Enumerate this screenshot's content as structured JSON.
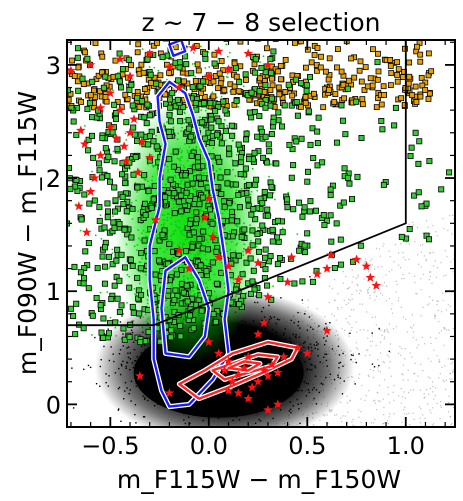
{
  "chart_data": {
    "type": "scatter",
    "title": "z ~ 7 − 8 selection",
    "xlabel": "m_F115W − m_F150W",
    "ylabel": "m_F090W − m_F115W",
    "xlim": [
      -0.72,
      1.25
    ],
    "ylim": [
      -0.2,
      3.22
    ],
    "x_ticks": [
      -0.5,
      0.0,
      0.5,
      1.0
    ],
    "x_tick_labels": [
      "−0.5",
      "0.0",
      "0.5",
      "1.0"
    ],
    "y_ticks": [
      0,
      1,
      2,
      3
    ],
    "y_tick_labels": [
      "0",
      "1",
      "2",
      "3"
    ],
    "selection_boundary": [
      [
        -0.72,
        0.7
      ],
      [
        -0.28,
        0.7
      ],
      [
        1.0,
        1.6
      ],
      [
        1.0,
        3.22
      ]
    ],
    "series": [
      {
        "color": "#000000",
        "marker": "dot",
        "centroid": [
          0.08,
          0.38
        ],
        "spread": [
          0.26,
          0.22
        ]
      },
      {
        "color": "#00dd00",
        "marker": "dot",
        "centroid": [
          -0.1,
          1.35
        ],
        "spread": [
          0.18,
          0.9
        ]
      },
      {
        "color": "#33cc33",
        "marker": "square"
      },
      {
        "color": "#e8a100",
        "marker": "square"
      },
      {
        "color": "#ff1111",
        "marker": "star",
        "points": [
          [
            -0.65,
            2.42
          ],
          [
            -0.63,
            2.3
          ],
          [
            -0.58,
            2.0
          ],
          [
            -0.6,
            1.88
          ],
          [
            -0.55,
            2.2
          ],
          [
            -0.5,
            2.45
          ],
          [
            -0.47,
            2.35
          ],
          [
            -0.45,
            2.6
          ],
          [
            -0.43,
            2.28
          ],
          [
            -0.42,
            2.15
          ],
          [
            -0.4,
            2.4
          ],
          [
            -0.38,
            2.52
          ],
          [
            -0.36,
            2.05
          ],
          [
            -0.34,
            2.32
          ],
          [
            -0.66,
            1.75
          ],
          [
            -0.62,
            1.52
          ],
          [
            -0.3,
            2.18
          ],
          [
            -0.27,
            1.63
          ],
          [
            -0.5,
            2.75
          ],
          [
            -0.7,
            2.95
          ],
          [
            -0.6,
            3.0
          ],
          [
            -0.45,
            3.05
          ],
          [
            -0.4,
            2.9
          ],
          [
            -0.55,
            2.62
          ],
          [
            -0.3,
            3.1
          ],
          [
            -0.2,
            2.98
          ],
          [
            -0.15,
            2.8
          ],
          [
            -0.08,
            3.15
          ],
          [
            0.0,
            2.9
          ],
          [
            0.1,
            2.96
          ],
          [
            0.2,
            3.1
          ],
          [
            0.3,
            3.0
          ],
          [
            0.05,
            3.12
          ],
          [
            -0.15,
            1.36
          ],
          [
            -0.1,
            1.2
          ],
          [
            0.0,
            1.82
          ],
          [
            -0.02,
            1.65
          ],
          [
            0.02,
            1.48
          ],
          [
            0.05,
            1.3
          ],
          [
            0.1,
            1.22
          ],
          [
            0.15,
            1.1
          ],
          [
            0.2,
            1.36
          ],
          [
            0.25,
            1.25
          ],
          [
            0.3,
            0.95
          ],
          [
            0.4,
            1.08
          ],
          [
            0.42,
            1.3
          ],
          [
            0.55,
            1.15
          ],
          [
            0.6,
            1.2
          ],
          [
            0.62,
            1.32
          ],
          [
            0.75,
            1.28
          ],
          [
            0.8,
            1.22
          ],
          [
            0.82,
            1.12
          ],
          [
            0.85,
            1.05
          ],
          [
            0.0,
            0.55
          ],
          [
            0.05,
            0.45
          ],
          [
            0.08,
            0.3
          ],
          [
            0.1,
            0.38
          ],
          [
            0.12,
            0.2
          ],
          [
            0.15,
            0.26
          ],
          [
            0.18,
            0.32
          ],
          [
            0.2,
            0.42
          ],
          [
            0.22,
            0.15
          ],
          [
            0.25,
            0.2
          ],
          [
            0.28,
            0.3
          ],
          [
            0.3,
            0.25
          ],
          [
            0.32,
            0.35
          ],
          [
            0.35,
            0.28
          ],
          [
            0.38,
            0.42
          ],
          [
            0.45,
            0.5
          ],
          [
            0.5,
            0.45
          ],
          [
            0.2,
            0.05
          ],
          [
            0.35,
            0.0
          ],
          [
            0.15,
            0.1
          ],
          [
            0.1,
            0.12
          ],
          [
            0.3,
            -0.05
          ],
          [
            -0.35,
            0.25
          ],
          [
            -0.2,
            0.1
          ],
          [
            0.25,
            0.62
          ],
          [
            0.28,
            0.72
          ],
          [
            0.6,
            0.65
          ]
        ]
      }
    ],
    "contours": [
      {
        "color": "#1a1aff",
        "levels": [
          [
            [
              -0.24,
              0.12
            ],
            [
              -0.28,
              0.4
            ],
            [
              -0.28,
              0.75
            ],
            [
              -0.3,
              1.1
            ],
            [
              -0.3,
              1.4
            ],
            [
              -0.25,
              1.75
            ],
            [
              -0.25,
              2.0
            ],
            [
              -0.22,
              2.3
            ],
            [
              -0.25,
              2.5
            ],
            [
              -0.26,
              2.72
            ],
            [
              -0.2,
              2.85
            ],
            [
              -0.12,
              2.75
            ],
            [
              -0.08,
              2.55
            ],
            [
              -0.05,
              2.35
            ],
            [
              0.0,
              2.15
            ],
            [
              0.02,
              1.9
            ],
            [
              0.05,
              1.65
            ],
            [
              0.08,
              1.3
            ],
            [
              0.1,
              1.0
            ],
            [
              0.08,
              0.75
            ],
            [
              0.1,
              0.45
            ],
            [
              0.02,
              0.22
            ],
            [
              -0.1,
              0.0
            ],
            [
              -0.2,
              -0.02
            ],
            [
              -0.24,
              0.12
            ]
          ],
          [
            [
              -0.22,
              0.45
            ],
            [
              -0.24,
              0.85
            ],
            [
              -0.22,
              1.18
            ],
            [
              -0.12,
              1.3
            ],
            [
              -0.05,
              1.1
            ],
            [
              0.0,
              0.85
            ],
            [
              -0.02,
              0.6
            ],
            [
              -0.1,
              0.42
            ],
            [
              -0.22,
              0.45
            ]
          ],
          [
            [
              -0.18,
              3.08
            ],
            [
              -0.2,
              3.18
            ],
            [
              -0.14,
              3.22
            ],
            [
              -0.12,
              3.12
            ],
            [
              -0.18,
              3.08
            ]
          ]
        ]
      },
      {
        "color": "#ff2222",
        "levels": [
          [
            [
              -0.15,
              0.18
            ],
            [
              -0.02,
              0.3
            ],
            [
              0.12,
              0.45
            ],
            [
              0.3,
              0.55
            ],
            [
              0.45,
              0.5
            ],
            [
              0.42,
              0.4
            ],
            [
              0.3,
              0.3
            ],
            [
              0.1,
              0.15
            ],
            [
              -0.05,
              0.05
            ],
            [
              -0.15,
              0.18
            ]
          ],
          [
            [
              0.02,
              0.3
            ],
            [
              0.12,
              0.36
            ],
            [
              0.25,
              0.44
            ],
            [
              0.35,
              0.42
            ],
            [
              0.32,
              0.34
            ],
            [
              0.2,
              0.28
            ],
            [
              0.08,
              0.22
            ],
            [
              0.02,
              0.3
            ]
          ],
          [
            [
              0.1,
              0.32
            ],
            [
              0.18,
              0.38
            ],
            [
              0.26,
              0.36
            ],
            [
              0.2,
              0.3
            ],
            [
              0.1,
              0.32
            ]
          ]
        ]
      }
    ]
  }
}
